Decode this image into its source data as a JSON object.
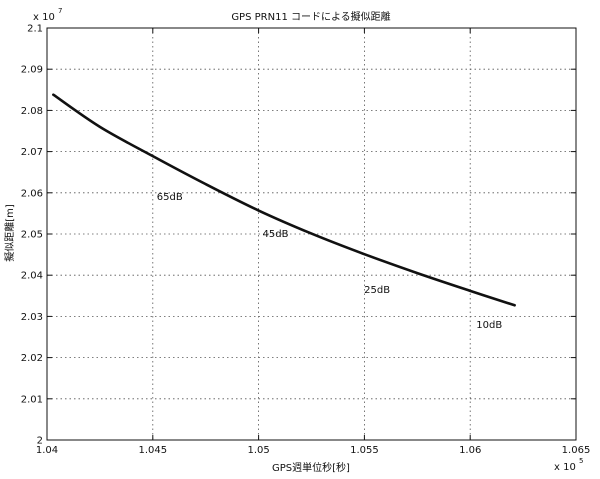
{
  "chart_data": {
    "type": "line",
    "title": "GPS PRN11 コードによる擬似距離",
    "xlabel": "GPS週単位秒[秒]",
    "ylabel": "擬似距離[m]",
    "x_exponent_label": "x 10",
    "x_exponent_power": "5",
    "y_exponent_label": "x 10",
    "y_exponent_power": "7",
    "xlim": [
      1.04,
      1.065
    ],
    "ylim": [
      2.0,
      2.1
    ],
    "grid": true,
    "xticks": [
      1.04,
      1.045,
      1.05,
      1.055,
      1.06,
      1.065
    ],
    "xtick_labels": [
      "1.04",
      "1.045",
      "1.05",
      "1.055",
      "1.06",
      "1.065"
    ],
    "yticks": [
      2.0,
      2.01,
      2.02,
      2.03,
      2.04,
      2.05,
      2.06,
      2.07,
      2.08,
      2.09,
      2.1
    ],
    "ytick_labels": [
      "2",
      "2.01",
      "2.02",
      "2.03",
      "2.04",
      "2.05",
      "2.06",
      "2.07",
      "2.08",
      "2.09",
      "2.1"
    ],
    "series": [
      {
        "x": [
          1.0403,
          1.0425,
          1.045,
          1.0475,
          1.05,
          1.0525,
          1.055,
          1.0575,
          1.06,
          1.0621
        ],
        "y": [
          2.0838,
          2.076,
          2.0689,
          2.0621,
          2.0557,
          2.0501,
          2.0451,
          2.0405,
          2.0362,
          2.0327
        ],
        "color": "#111111"
      }
    ],
    "annotations": [
      {
        "text": "65dB",
        "x": 1.0458,
        "y": 2.0592
      },
      {
        "text": "45dB",
        "x": 1.0508,
        "y": 2.0502
      },
      {
        "text": "25dB",
        "x": 1.0556,
        "y": 2.0366
      },
      {
        "text": "10dB",
        "x": 1.0609,
        "y": 2.0281
      }
    ]
  }
}
